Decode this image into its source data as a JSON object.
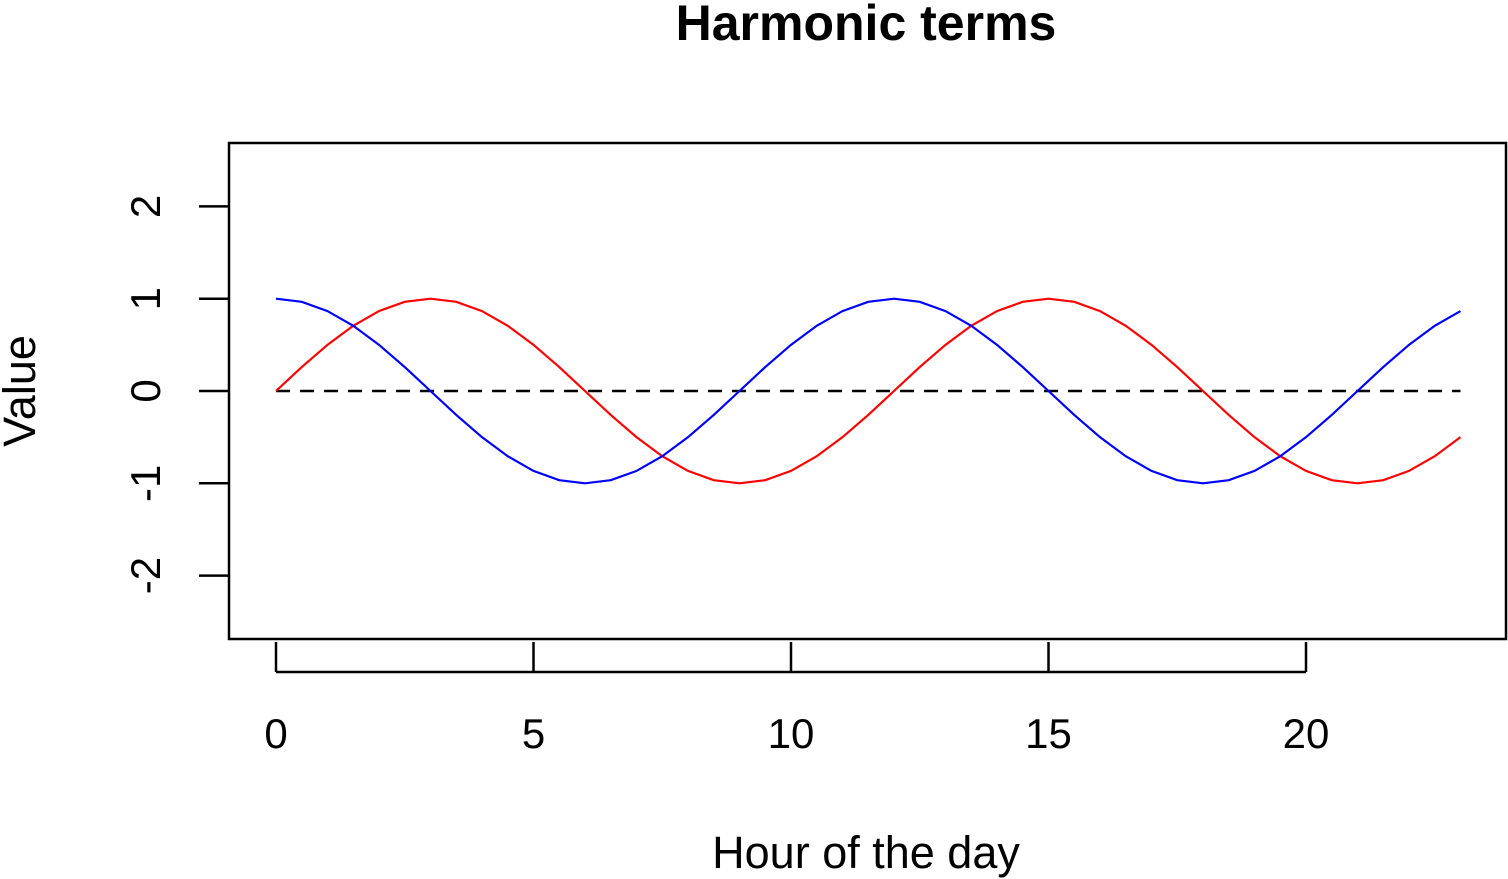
{
  "chart_data": {
    "type": "line",
    "title": "Harmonic terms",
    "xlabel": "Hour of the day",
    "ylabel": "Value",
    "xlim": [
      0,
      23
    ],
    "ylim": [
      -2.6,
      2.7
    ],
    "xticks": [
      0,
      5,
      10,
      15,
      20
    ],
    "yticks": [
      -2,
      -1,
      0,
      1,
      2
    ],
    "grid": false,
    "x": [
      0,
      0.5,
      1,
      1.5,
      2,
      2.5,
      3,
      3.5,
      4,
      4.5,
      5,
      5.5,
      6,
      6.5,
      7,
      7.5,
      8,
      8.5,
      9,
      9.5,
      10,
      10.5,
      11,
      11.5,
      12,
      12.5,
      13,
      13.5,
      14,
      14.5,
      15,
      15.5,
      16,
      16.5,
      17,
      17.5,
      18,
      18.5,
      19,
      19.5,
      20,
      20.5,
      21,
      21.5,
      22,
      22.5,
      23
    ],
    "series": [
      {
        "color": "#ff0000",
        "values": [
          0.0,
          0.259,
          0.5,
          0.707,
          0.866,
          0.966,
          1.0,
          0.966,
          0.866,
          0.707,
          0.5,
          0.259,
          0.0,
          -0.259,
          -0.5,
          -0.707,
          -0.866,
          -0.966,
          -1.0,
          -0.966,
          -0.866,
          -0.707,
          -0.5,
          -0.259,
          0.0,
          0.259,
          0.5,
          0.707,
          0.866,
          0.966,
          1.0,
          0.966,
          0.866,
          0.707,
          0.5,
          0.259,
          0.0,
          -0.259,
          -0.5,
          -0.707,
          -0.866,
          -0.966,
          -1.0,
          -0.966,
          -0.866,
          -0.707,
          -0.5
        ]
      },
      {
        "color": "#0000ff",
        "values": [
          1.0,
          0.966,
          0.866,
          0.707,
          0.5,
          0.259,
          0.0,
          -0.259,
          -0.5,
          -0.707,
          -0.866,
          -0.966,
          -1.0,
          -0.966,
          -0.866,
          -0.707,
          -0.5,
          -0.259,
          0.0,
          0.259,
          0.5,
          0.707,
          0.866,
          0.966,
          1.0,
          0.966,
          0.866,
          0.707,
          0.5,
          0.259,
          0.0,
          -0.259,
          -0.5,
          -0.707,
          -0.866,
          -0.966,
          -1.0,
          -0.966,
          -0.866,
          -0.707,
          -0.5,
          -0.259,
          0.0,
          0.259,
          0.5,
          0.707,
          0.866
        ]
      }
    ],
    "reference_line": {
      "y": 0,
      "x_range": [
        0,
        23
      ],
      "style": "dashed",
      "color": "#000000"
    }
  }
}
